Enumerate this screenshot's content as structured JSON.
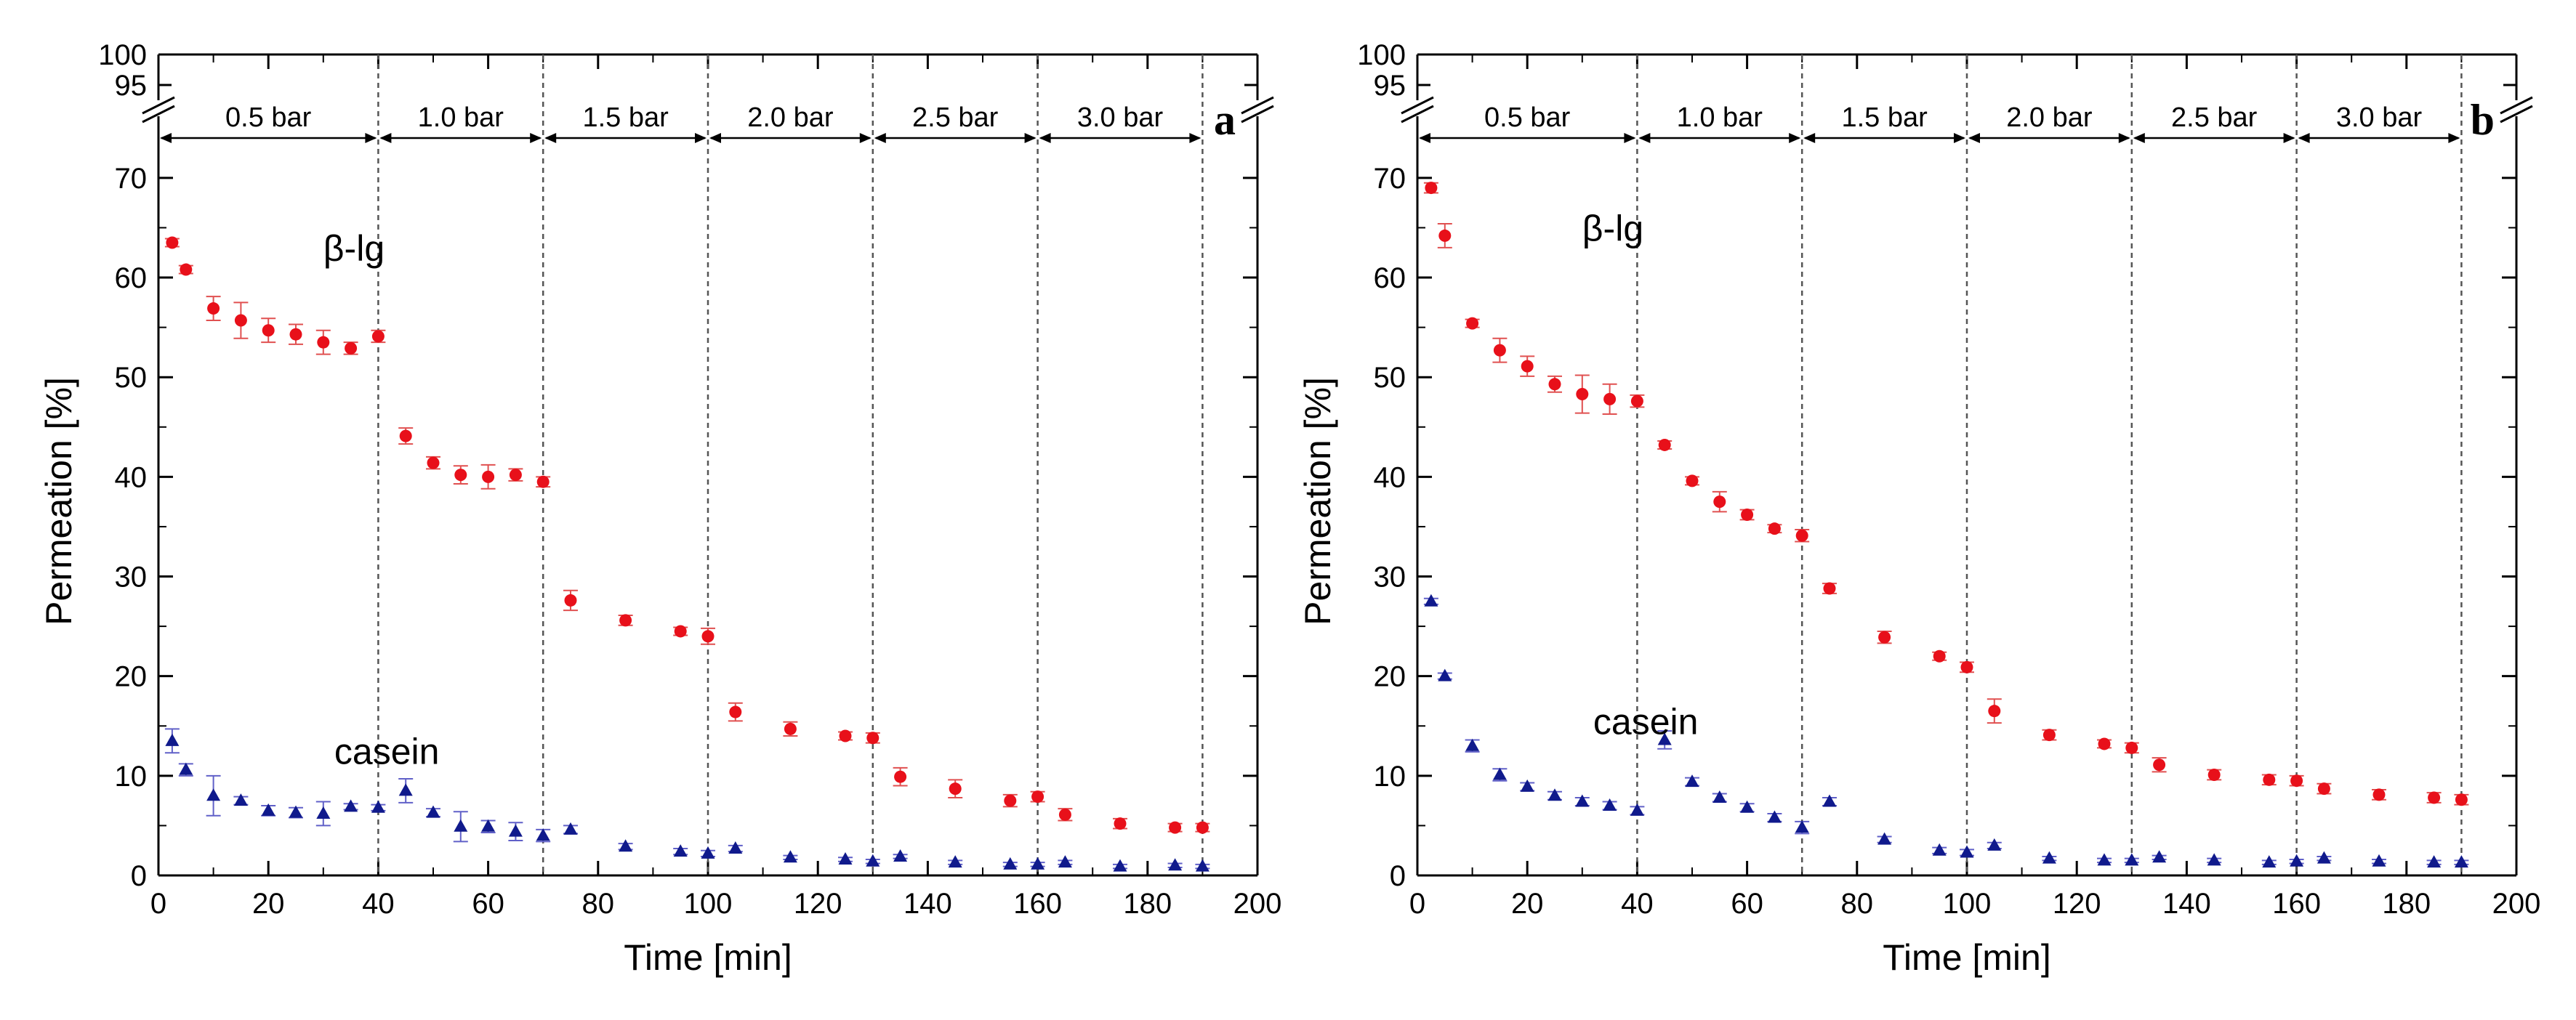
{
  "chart_data": [
    {
      "type": "scatter",
      "panel_label": "a",
      "xlabel": "Time [min]",
      "ylabel": "Permeation [%]",
      "xlim": [
        0,
        200
      ],
      "ylim": [
        0,
        74
      ],
      "x_ticks": [
        0,
        20,
        40,
        60,
        80,
        100,
        120,
        140,
        160,
        180,
        200
      ],
      "y_ticks": [
        0,
        10,
        20,
        30,
        40,
        50,
        60,
        70
      ],
      "y_break_ticks": [
        95,
        100
      ],
      "pressure_segments": [
        {
          "label": "0.5 bar",
          "start": 0,
          "end": 40
        },
        {
          "label": "1.0 bar",
          "start": 40,
          "end": 70
        },
        {
          "label": "1.5 bar",
          "start": 70,
          "end": 100
        },
        {
          "label": "2.0 bar",
          "start": 100,
          "end": 130
        },
        {
          "label": "2.5 bar",
          "start": 130,
          "end": 160
        },
        {
          "label": "3.0 bar",
          "start": 160,
          "end": 190
        }
      ],
      "series": [
        {
          "name": "β-lg",
          "label_at": [
            30,
            63
          ],
          "x": [
            2.5,
            5,
            10,
            15,
            20,
            25,
            30,
            35,
            40,
            45,
            50,
            55,
            60,
            65,
            70,
            75,
            85,
            95,
            100,
            105,
            115,
            125,
            130,
            135,
            145,
            155,
            160,
            165,
            175,
            185,
            190
          ],
          "y": [
            63.5,
            60.8,
            56.9,
            55.7,
            54.7,
            54.3,
            53.5,
            52.9,
            54.1,
            44.1,
            41.4,
            40.2,
            40.0,
            40.2,
            39.5,
            27.6,
            25.6,
            24.5,
            24.0,
            16.4,
            14.7,
            14.0,
            13.8,
            9.9,
            8.7,
            7.5,
            7.9,
            6.1,
            5.2,
            4.8,
            4.8
          ],
          "err": [
            0.4,
            0.4,
            1.2,
            1.8,
            1.2,
            1.0,
            1.2,
            0.6,
            0.6,
            0.8,
            0.6,
            0.9,
            1.2,
            0.6,
            0.5,
            1.0,
            0.5,
            0.4,
            0.8,
            0.9,
            0.7,
            0.4,
            0.5,
            0.9,
            0.9,
            0.6,
            0.5,
            0.6,
            0.5,
            0.4,
            0.4
          ]
        },
        {
          "name": "casein",
          "label_at": [
            32,
            12.5
          ],
          "x": [
            2.5,
            5,
            10,
            15,
            20,
            25,
            30,
            35,
            40,
            45,
            50,
            55,
            60,
            65,
            70,
            75,
            85,
            95,
            100,
            105,
            115,
            125,
            130,
            135,
            145,
            155,
            160,
            165,
            175,
            185,
            190
          ],
          "y": [
            13.5,
            10.6,
            8.0,
            7.5,
            6.5,
            6.3,
            6.2,
            6.9,
            6.8,
            8.5,
            6.3,
            4.9,
            4.9,
            4.4,
            4.0,
            4.6,
            2.9,
            2.4,
            2.2,
            2.7,
            1.8,
            1.6,
            1.4,
            1.9,
            1.3,
            1.1,
            1.1,
            1.3,
            0.9,
            1.0,
            0.9
          ],
          "err": [
            1.2,
            0.6,
            2.0,
            0.4,
            0.5,
            0.5,
            1.2,
            0.3,
            0.3,
            1.2,
            0.4,
            1.5,
            0.6,
            0.9,
            0.6,
            0.4,
            0.3,
            0.3,
            0.3,
            0.3,
            0.2,
            0.2,
            0.2,
            0.2,
            0.2,
            0.2,
            0.2,
            0.2,
            0.2,
            0.2,
            0.2
          ]
        }
      ]
    },
    {
      "type": "scatter",
      "panel_label": "b",
      "xlabel": "Time [min]",
      "ylabel": "Permeation [%]",
      "xlim": [
        0,
        200
      ],
      "ylim": [
        0,
        74
      ],
      "x_ticks": [
        0,
        20,
        40,
        60,
        80,
        100,
        120,
        140,
        160,
        180,
        200
      ],
      "y_ticks": [
        0,
        10,
        20,
        30,
        40,
        50,
        60,
        70
      ],
      "y_break_ticks": [
        95,
        100
      ],
      "pressure_segments": [
        {
          "label": "0.5 bar",
          "start": 0,
          "end": 40
        },
        {
          "label": "1.0 bar",
          "start": 40,
          "end": 70
        },
        {
          "label": "1.5 bar",
          "start": 70,
          "end": 100
        },
        {
          "label": "2.0 bar",
          "start": 100,
          "end": 130
        },
        {
          "label": "2.5 bar",
          "start": 130,
          "end": 160
        },
        {
          "label": "3.0 bar",
          "start": 160,
          "end": 190
        }
      ],
      "series": [
        {
          "name": "β-lg",
          "label_at": [
            30,
            65
          ],
          "x": [
            2.5,
            5,
            10,
            15,
            20,
            25,
            30,
            35,
            40,
            45,
            50,
            55,
            60,
            65,
            70,
            75,
            85,
            95,
            100,
            105,
            115,
            125,
            130,
            135,
            145,
            155,
            160,
            165,
            175,
            185,
            190
          ],
          "y": [
            69.0,
            64.2,
            55.4,
            52.7,
            51.1,
            49.3,
            48.3,
            47.8,
            47.6,
            43.2,
            39.6,
            37.5,
            36.2,
            34.8,
            34.1,
            28.8,
            23.9,
            22.0,
            20.9,
            16.5,
            14.1,
            13.2,
            12.8,
            11.1,
            10.1,
            9.6,
            9.5,
            8.7,
            8.1,
            7.8,
            7.6
          ],
          "err": [
            0.5,
            1.2,
            0.4,
            1.2,
            1.0,
            0.8,
            1.9,
            1.5,
            0.6,
            0.4,
            0.4,
            1.0,
            0.5,
            0.4,
            0.6,
            0.5,
            0.6,
            0.4,
            0.5,
            1.2,
            0.5,
            0.4,
            0.5,
            0.7,
            0.5,
            0.5,
            0.5,
            0.5,
            0.5,
            0.5,
            0.5
          ]
        },
        {
          "name": "casein",
          "label_at": [
            32,
            15.5
          ],
          "x": [
            2.5,
            5,
            10,
            15,
            20,
            25,
            30,
            35,
            40,
            45,
            50,
            55,
            60,
            65,
            70,
            75,
            85,
            95,
            100,
            105,
            115,
            125,
            130,
            135,
            145,
            155,
            160,
            165,
            175,
            185,
            190
          ],
          "y": [
            27.5,
            20.0,
            13.0,
            10.1,
            8.9,
            8.0,
            7.4,
            7.0,
            6.5,
            13.6,
            9.4,
            7.8,
            6.8,
            5.8,
            4.8,
            7.4,
            3.6,
            2.5,
            2.3,
            3.0,
            1.7,
            1.5,
            1.5,
            1.8,
            1.5,
            1.3,
            1.4,
            1.7,
            1.4,
            1.3,
            1.3
          ],
          "err": [
            0.3,
            0.3,
            0.6,
            0.6,
            0.4,
            0.4,
            0.4,
            0.4,
            0.4,
            0.9,
            0.4,
            0.4,
            0.4,
            0.4,
            0.6,
            0.4,
            0.3,
            0.3,
            0.3,
            0.3,
            0.2,
            0.2,
            0.2,
            0.2,
            0.2,
            0.2,
            0.2,
            0.2,
            0.2,
            0.2,
            0.2
          ]
        }
      ]
    }
  ],
  "colors": {
    "beta_lg_point": "#e8101a",
    "beta_lg_err": "#e05050",
    "casein_point": "#101a8c",
    "casein_err": "#6060c8"
  }
}
